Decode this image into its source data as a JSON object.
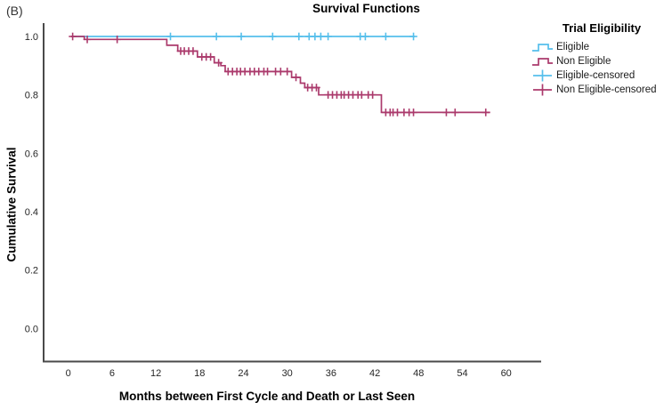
{
  "panel_label": "(B)",
  "legend": {
    "title": "Trial Eligibility",
    "items": [
      {
        "label": "Eligible",
        "color": "#56bfeb",
        "symbol": "step-line"
      },
      {
        "label": "Non Eligible",
        "color": "#ab3a6c",
        "symbol": "step-line"
      },
      {
        "label": "Eligible-censored",
        "color": "#56bfeb",
        "symbol": "plus-marker"
      },
      {
        "label": "Non Eligible-censored",
        "color": "#ab3a6c",
        "symbol": "plus-marker"
      }
    ]
  },
  "colors": {
    "eligible": "#56bfeb",
    "non_eligible": "#ab3a6c",
    "axis_line": "#4a4a4a",
    "tick_text": "#262626"
  },
  "chart_data": {
    "type": "line",
    "subtype": "kaplan-meier-step",
    "title": "Survival Functions",
    "xlabel": "Months between First Cycle and Death or Last Seen",
    "ylabel": "Cumulative Survival",
    "x_ticks": [
      0,
      6,
      12,
      18,
      24,
      30,
      36,
      42,
      48,
      54,
      60
    ],
    "y_ticks": [
      0.0,
      0.2,
      0.4,
      0.6,
      0.8,
      1.0
    ],
    "xlim": [
      0,
      64
    ],
    "ylim": [
      0.0,
      1.0
    ],
    "grid": false,
    "legend_position": "right",
    "series": [
      {
        "name": "Eligible",
        "color": "#56bfeb",
        "steps": [
          [
            0.4,
            1.0
          ]
        ],
        "end_month": 47.5,
        "censored_months": [
          14,
          20.3,
          23.7,
          28,
          31.6,
          33,
          33.8,
          34.6,
          35.6,
          40,
          40.7,
          43.5,
          47.3
        ]
      },
      {
        "name": "Non Eligible",
        "color": "#ab3a6c",
        "steps": [
          [
            0.4,
            1.0
          ],
          [
            2.2,
            0.99
          ],
          [
            13.5,
            0.97
          ],
          [
            15,
            0.95
          ],
          [
            17.7,
            0.93
          ],
          [
            20,
            0.91
          ],
          [
            20.9,
            0.9
          ],
          [
            21.5,
            0.88
          ],
          [
            30.6,
            0.86
          ],
          [
            31.8,
            0.84
          ],
          [
            32.4,
            0.825
          ],
          [
            34.3,
            0.8
          ],
          [
            42.9,
            0.74
          ]
        ],
        "end_month": 57.8,
        "censored_months": [
          0.6,
          2.6,
          6.7,
          15.4,
          15.9,
          16.5,
          17.1,
          18.3,
          18.9,
          19.5,
          20.6,
          21.9,
          22.5,
          23.1,
          23.6,
          24.2,
          24.9,
          25.5,
          26.1,
          26.8,
          27.3,
          28.4,
          29.1,
          30,
          31.2,
          32.8,
          33.4,
          34,
          35.6,
          36.2,
          36.8,
          37.4,
          37.8,
          38.4,
          39,
          39.7,
          40.2,
          41.1,
          41.7,
          43.5,
          44.1,
          44.5,
          45.1,
          46,
          46.7,
          47.3,
          51.8,
          53,
          57.2
        ]
      }
    ]
  }
}
